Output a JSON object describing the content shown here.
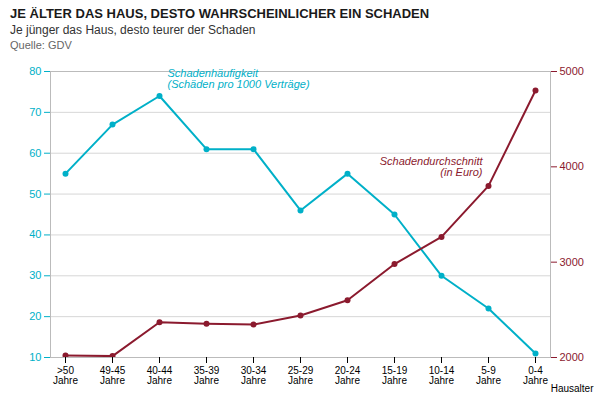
{
  "chart_data": {
    "type": "line",
    "title": "JE ÄLTER DAS HAUS, DESTO WAHRSCHEINLICHER EIN SCHADEN",
    "subtitle": "Je jünger das Haus, desto teurer der Schaden",
    "source": "Quelle: GDV",
    "xlabel": "Hausalter",
    "categories": [
      ">50\nJahre",
      "49-45\nJahre",
      "40-44\nJahre",
      "35-39\nJahre",
      "30-34\nJahre",
      "25-29\nJahre",
      "20-24\nJahre",
      "15-19\nJahre",
      "10-14\nJahre",
      "5-9\nJahre",
      "0-4\nJahre"
    ],
    "series": [
      {
        "name": "Schadenhäufigkeit\n(Schäden pro 1000 Verträge)",
        "color": "#00b0c8",
        "values": [
          55,
          67,
          74,
          61,
          61,
          46,
          55,
          45,
          30,
          22,
          11
        ]
      },
      {
        "name": "Schadendurchschnitt\n(in Euro)",
        "color": "#8b1a2e",
        "axis": "y2",
        "values": [
          2020,
          2015,
          2370,
          2355,
          2345,
          2440,
          2600,
          2980,
          3265,
          3800,
          4800
        ]
      }
    ],
    "ylim": [
      10,
      80
    ],
    "yticks": [
      10,
      20,
      30,
      40,
      50,
      60,
      70,
      80
    ],
    "y2lim": [
      2000,
      5000
    ],
    "y2ticks": [
      2000,
      3000,
      4000,
      5000
    ],
    "grid": true,
    "marker": "circle"
  }
}
